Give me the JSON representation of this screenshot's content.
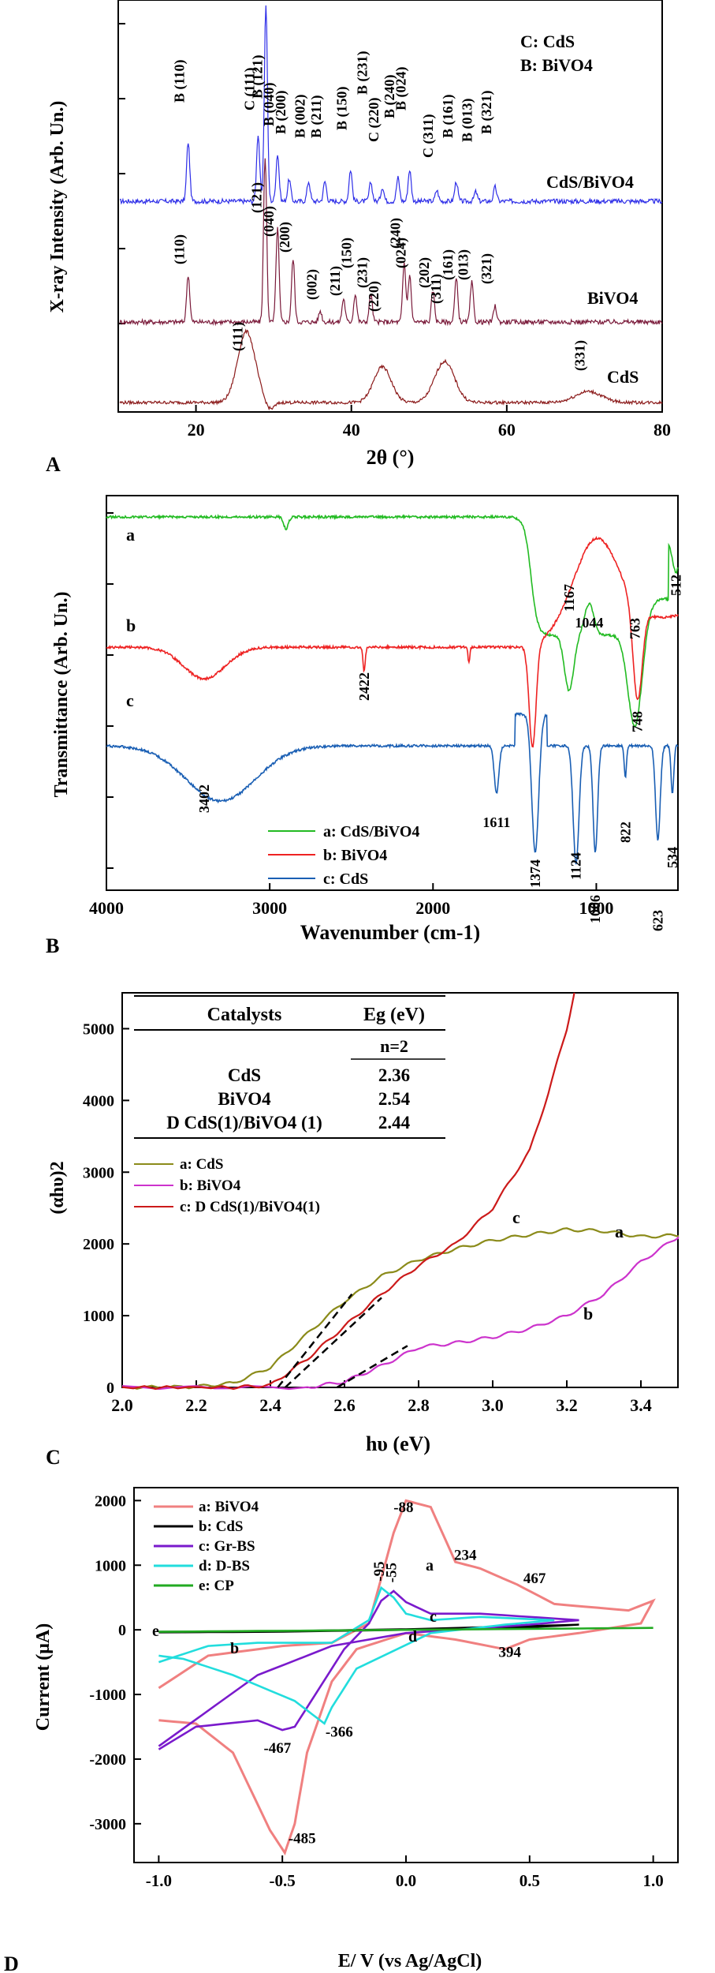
{
  "chart_data": [
    {
      "type": "line",
      "panel_label": "A",
      "xlabel": "2θ (°)",
      "ylabel": "X-ray Intensity (Arb. Un.)",
      "xlim": [
        10,
        80
      ],
      "xticks": [
        20,
        40,
        60,
        80
      ],
      "legend_lines": [
        "C: CdS",
        "B: BiVO4"
      ],
      "series": [
        {
          "name": "CdS/BiVO4",
          "color": "#2e2ee8",
          "peaks": [
            {
              "label": "B (110)",
              "x": 19.0
            },
            {
              "label": "C (111)",
              "x": 28.0
            },
            {
              "label": "B (121)",
              "x": 29.0
            },
            {
              "label": "B (040)",
              "x": 30.5
            },
            {
              "label": "B (200)",
              "x": 32.0
            },
            {
              "label": "B (002)",
              "x": 34.5
            },
            {
              "label": "B (211)",
              "x": 36.6
            },
            {
              "label": "B (150)",
              "x": 39.9
            },
            {
              "label": "B (231)",
              "x": 42.5
            },
            {
              "label": "C (220)",
              "x": 44.0
            },
            {
              "label": "B (240)",
              "x": 46.0
            },
            {
              "label": "B (024)",
              "x": 47.5
            },
            {
              "label": "C (311)",
              "x": 51.0
            },
            {
              "label": "B (161)",
              "x": 53.5
            },
            {
              "label": "B (013)",
              "x": 56.0
            },
            {
              "label": "B (321)",
              "x": 58.5
            }
          ]
        },
        {
          "name": "BiVO4",
          "color": "#7a1a3a",
          "peaks": [
            {
              "label": "(110)",
              "x": 19.0
            },
            {
              "label": "(121)",
              "x": 28.9
            },
            {
              "label": "(040)",
              "x": 30.5
            },
            {
              "label": "(200)",
              "x": 32.5
            },
            {
              "label": "(002)",
              "x": 36.0
            },
            {
              "label": "(211)",
              "x": 39.0
            },
            {
              "label": "(150)",
              "x": 40.5
            },
            {
              "label": "(231)",
              "x": 42.5
            },
            {
              "label": "(240)",
              "x": 46.8
            },
            {
              "label": "(024)",
              "x": 47.5
            },
            {
              "label": "(202)",
              "x": 50.5
            },
            {
              "label": "(161)",
              "x": 53.5
            },
            {
              "label": "(013)",
              "x": 55.5
            },
            {
              "label": "(321)",
              "x": 58.5
            }
          ]
        },
        {
          "name": "CdS",
          "color": "#8b1a1a",
          "peaks": [
            {
              "label": "(111)",
              "x": 26.5
            },
            {
              "label": "(220)",
              "x": 44.0
            },
            {
              "label": "(311)",
              "x": 52.0
            },
            {
              "label": "(331)",
              "x": 70.5
            }
          ]
        }
      ]
    },
    {
      "type": "line",
      "panel_label": "B",
      "xlabel": "Wavenumber (cm-1)",
      "ylabel": "Transmittance (Arb. Un.)",
      "xlim": [
        4000,
        500
      ],
      "xticks": [
        4000,
        3000,
        2000,
        1000
      ],
      "series": [
        {
          "name": "a: CdS/BiVO4",
          "curve_label": "a",
          "color": "#22bb22"
        },
        {
          "name": "b: BiVO4",
          "curve_label": "b",
          "color": "#ee2222"
        },
        {
          "name": "c: CdS",
          "curve_label": "c",
          "color": "#1a5fb4"
        }
      ],
      "annotations": [
        {
          "text": "1044",
          "x": 1044
        },
        {
          "text": "1167",
          "x": 1167
        },
        {
          "text": "763",
          "x": 763
        },
        {
          "text": "512",
          "x": 512
        },
        {
          "text": "2422",
          "x": 2422,
          "color": "#ee2222"
        },
        {
          "text": "748",
          "x": 748,
          "color": "#ee2222"
        },
        {
          "text": "3402",
          "x": 3402
        },
        {
          "text": "1611",
          "x": 1611
        },
        {
          "text": "1374",
          "x": 1374
        },
        {
          "text": "1124",
          "x": 1124
        },
        {
          "text": "822",
          "x": 822
        },
        {
          "text": "534",
          "x": 534
        },
        {
          "text": "1006",
          "x": 1006
        },
        {
          "text": "623",
          "x": 623
        }
      ]
    },
    {
      "type": "line",
      "panel_label": "C",
      "xlabel": "hυ (eV)",
      "ylabel": "(αhυ)2",
      "xlim": [
        2.0,
        3.5
      ],
      "ylim": [
        0,
        5500
      ],
      "xticks": [
        2.0,
        2.2,
        2.4,
        2.6,
        2.8,
        3.0,
        3.2,
        3.4
      ],
      "yticks": [
        0,
        1000,
        2000,
        3000,
        4000,
        5000
      ],
      "table": {
        "headers": [
          "Catalysts",
          "Eg (eV)"
        ],
        "subheader": "n=2",
        "rows": [
          {
            "catalyst": "CdS",
            "eg": "2.36"
          },
          {
            "catalyst": "BiVO4",
            "eg": "2.54"
          },
          {
            "catalyst": "D CdS(1)/BiVO4 (1)",
            "eg": "2.44"
          }
        ]
      },
      "series": [
        {
          "name": "a: CdS",
          "curve_label": "a",
          "color": "#8b8b1a",
          "x": [
            2.0,
            2.2,
            2.3,
            2.4,
            2.5,
            2.6,
            2.7,
            2.8,
            2.9,
            3.0,
            3.1,
            3.2,
            3.3,
            3.4,
            3.5
          ],
          "y": [
            0,
            10,
            60,
            280,
            750,
            1200,
            1550,
            1780,
            1930,
            2050,
            2130,
            2200,
            2180,
            2100,
            2120
          ]
        },
        {
          "name": "b: BiVO4",
          "curve_label": "b",
          "color": "#cc33cc",
          "x": [
            2.0,
            2.5,
            2.6,
            2.7,
            2.8,
            2.9,
            3.0,
            3.1,
            3.2,
            3.3,
            3.4,
            3.5
          ],
          "y": [
            0,
            0,
            80,
            300,
            560,
            620,
            700,
            820,
            1000,
            1300,
            1750,
            2100
          ]
        },
        {
          "name": "c: D CdS(1)/BiVO4(1)",
          "curve_label": "c",
          "color": "#cc1a1a",
          "x": [
            2.0,
            2.3,
            2.4,
            2.5,
            2.6,
            2.7,
            2.8,
            2.9,
            3.0,
            3.1,
            3.15,
            3.2,
            3.22
          ],
          "y": [
            0,
            0,
            30,
            400,
            850,
            1300,
            1700,
            2000,
            2500,
            3300,
            4100,
            5000,
            5500
          ]
        }
      ]
    },
    {
      "type": "line",
      "panel_label": "D",
      "xlabel": "E/ V (vs Ag/AgCl)",
      "ylabel": "Current (μA)",
      "xlim": [
        -1.1,
        1.1
      ],
      "ylim": [
        -3600,
        2200
      ],
      "xticks": [
        -1.0,
        -0.5,
        0.0,
        0.5,
        1.0
      ],
      "yticks": [
        -3000,
        -2000,
        -1000,
        0,
        1000,
        2000
      ],
      "series": [
        {
          "name": "a: BiVO4",
          "curve_label": "a",
          "color": "#f08080"
        },
        {
          "name": "b: CdS",
          "curve_label": "b",
          "color": "#000000"
        },
        {
          "name": "c: Gr-BS",
          "curve_label": "c",
          "color": "#7a1acc"
        },
        {
          "name": "d: D-BS",
          "curve_label": "d",
          "color": "#22dddd"
        },
        {
          "name": "e: CP",
          "curve_label": "e",
          "color": "#22aa22"
        }
      ],
      "annotations": [
        {
          "text": "-88",
          "x": -0.01,
          "y": 1820
        },
        {
          "text": "234",
          "x": 0.24,
          "y": 1080
        },
        {
          "text": "467",
          "x": 0.52,
          "y": 720
        },
        {
          "text": "-95",
          "x": -0.09,
          "y": 750
        },
        {
          "text": "-55",
          "x": -0.04,
          "y": 730
        },
        {
          "text": "394",
          "x": 0.42,
          "y": -420
        },
        {
          "text": "-467",
          "x": -0.52,
          "y": -1900
        },
        {
          "text": "-366",
          "x": -0.27,
          "y": -1650
        },
        {
          "text": "-485",
          "x": -0.42,
          "y": -3300
        }
      ]
    }
  ]
}
